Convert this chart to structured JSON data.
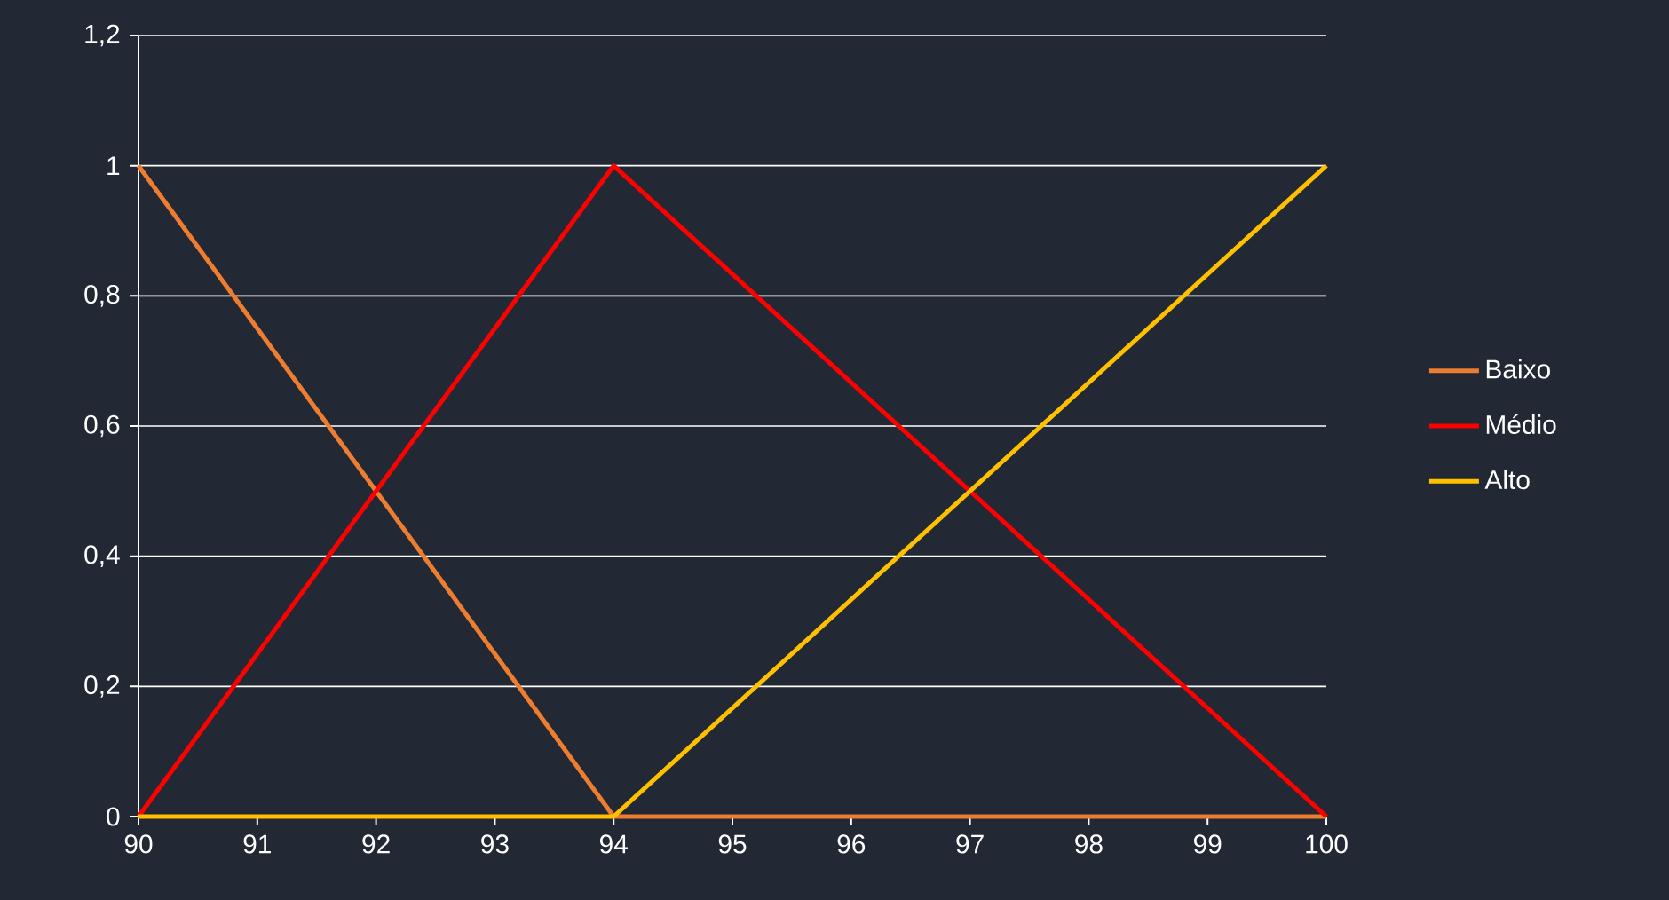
{
  "chart_data": {
    "type": "line",
    "series": [
      {
        "name": "Baixo",
        "color": "#ed7d31",
        "x": [
          90,
          94,
          100
        ],
        "values": [
          1,
          0,
          0
        ]
      },
      {
        "name": "Médio",
        "color": "#ff0000",
        "x": [
          90,
          94,
          100
        ],
        "values": [
          0,
          1,
          0
        ]
      },
      {
        "name": "Alto",
        "color": "#ffc000",
        "x": [
          90,
          94,
          100
        ],
        "values": [
          0,
          0,
          1
        ]
      }
    ],
    "xlim": [
      90,
      100
    ],
    "xticks": [
      90,
      91,
      92,
      93,
      94,
      95,
      96,
      97,
      98,
      99,
      100
    ],
    "ylim": [
      0,
      1.2
    ],
    "yticks": [
      0,
      {
        "value": 0.2,
        "label": "0,2"
      },
      {
        "value": 0.4,
        "label": "0,4"
      },
      {
        "value": 0.6,
        "label": "0,6"
      },
      {
        "value": 0.8,
        "label": "0,8"
      },
      1,
      {
        "value": 1.2,
        "label": "1,2"
      }
    ],
    "grid": "y",
    "legend": "right",
    "marker": "none",
    "line_style": "solid"
  }
}
